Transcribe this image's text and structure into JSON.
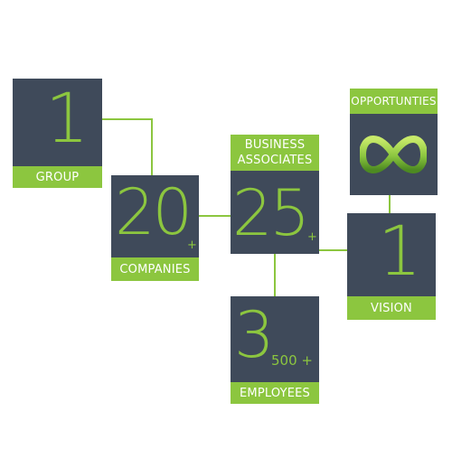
{
  "tiles": {
    "group": {
      "number": "1",
      "label": "GROUP"
    },
    "companies": {
      "number": "20",
      "plus": "+",
      "label": "COMPANIES"
    },
    "associates": {
      "number": "25",
      "plus": "+",
      "label_line1": "BUSINESS",
      "label_line2": "ASSOCIATES"
    },
    "employees": {
      "number": "3",
      "suffix": "500 +",
      "label": "EMPLOYEES"
    },
    "opportunities": {
      "label": "OPPORTUNTIES",
      "icon": "infinity-icon"
    },
    "vision": {
      "number": "1",
      "label": "VISION"
    }
  },
  "colors": {
    "tile": "#3f4a5a",
    "accent": "#8cc63f"
  }
}
